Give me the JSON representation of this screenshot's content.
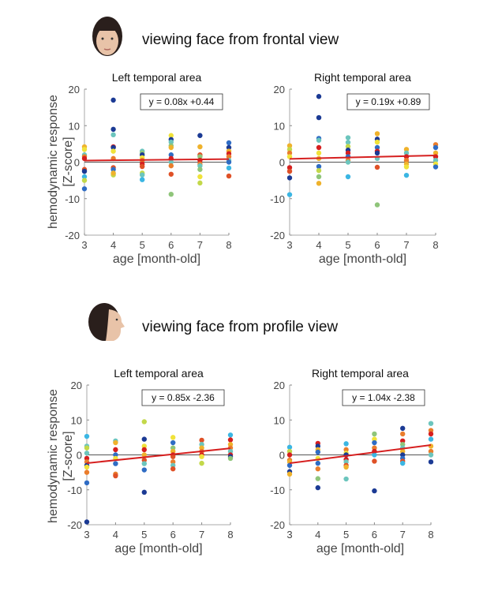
{
  "colors": {
    "navy": "#1b3a94",
    "blue": "#2f6cc4",
    "cyan": "#3bb6e3",
    "teal": "#6cc5bd",
    "green": "#8fc57a",
    "ygreen": "#c3d84a",
    "yellow": "#f0e23a",
    "gold": "#efb22c",
    "orange": "#ea7d2c",
    "redorange": "#df5127",
    "red": "#d61f1f",
    "fit": "#d62020"
  },
  "conditions": [
    {
      "title": "viewing face from frontal view",
      "icon": "face-frontal-photo"
    },
    {
      "title": "viewing face from profile view",
      "icon": "face-profile-photo"
    }
  ],
  "ylabel": [
    "hemodynamic response",
    "[Z-score]"
  ],
  "chart_data": [
    {
      "type": "scatter",
      "title": "Left temporal area",
      "xlabel": "age [month-old]",
      "xlim": [
        3,
        8
      ],
      "ylim": [
        -20,
        20
      ],
      "xticks": [
        "3",
        "4",
        "5",
        "6",
        "7",
        "8"
      ],
      "yticks": [
        "20",
        "10",
        "0",
        "-10",
        "-20"
      ],
      "equation": "y = 0.08x +0.44",
      "fit": {
        "slope": 0.08,
        "intercept": 0.44
      },
      "points": [
        [
          3,
          4.2,
          "gold"
        ],
        [
          3,
          3.5,
          "yellow"
        ],
        [
          3,
          2,
          "teal"
        ],
        [
          3,
          1.5,
          "orange"
        ],
        [
          3,
          1,
          "red"
        ],
        [
          3,
          -2,
          "redorange"
        ],
        [
          3,
          -2.5,
          "navy"
        ],
        [
          3,
          -4,
          "cyan"
        ],
        [
          3,
          -5,
          "ygreen"
        ],
        [
          3,
          -7.3,
          "blue"
        ],
        [
          4,
          17,
          "navy"
        ],
        [
          4,
          9,
          "navy"
        ],
        [
          4,
          7.5,
          "teal"
        ],
        [
          4,
          4.2,
          "red"
        ],
        [
          4,
          4,
          "navy"
        ],
        [
          4,
          3,
          "yellow"
        ],
        [
          4,
          1,
          "orange"
        ],
        [
          4,
          -1.5,
          "redorange"
        ],
        [
          4,
          -2,
          "blue"
        ],
        [
          4,
          -3,
          "teal"
        ],
        [
          4,
          -3.5,
          "ygreen"
        ],
        [
          4,
          -3,
          "gold"
        ],
        [
          5,
          3,
          "teal"
        ],
        [
          5,
          2.5,
          "green"
        ],
        [
          5,
          2,
          "navy"
        ],
        [
          5,
          1.2,
          "yellow"
        ],
        [
          5,
          0.5,
          "orange"
        ],
        [
          5,
          -0.5,
          "red"
        ],
        [
          5,
          -1.2,
          "redorange"
        ],
        [
          5,
          -3,
          "ygreen"
        ],
        [
          5,
          -3.5,
          "teal"
        ],
        [
          5,
          -4.8,
          "cyan"
        ],
        [
          6,
          7.3,
          "yellow"
        ],
        [
          6,
          6.2,
          "navy"
        ],
        [
          6,
          5.5,
          "teal"
        ],
        [
          6,
          4.5,
          "green"
        ],
        [
          6,
          4,
          "gold"
        ],
        [
          6,
          2,
          "blue"
        ],
        [
          6,
          1,
          "red"
        ],
        [
          6,
          0,
          "teal"
        ],
        [
          6,
          -1,
          "orange"
        ],
        [
          6,
          -3.3,
          "redorange"
        ],
        [
          6,
          -8.8,
          "green"
        ],
        [
          7,
          7.3,
          "navy"
        ],
        [
          7,
          4.2,
          "gold"
        ],
        [
          7,
          2,
          "redorange"
        ],
        [
          7,
          1.5,
          "green"
        ],
        [
          7,
          0.5,
          "red"
        ],
        [
          7,
          -0.5,
          "orange"
        ],
        [
          7,
          -1,
          "teal"
        ],
        [
          7,
          -2,
          "green"
        ],
        [
          7,
          -4,
          "yellow"
        ],
        [
          7,
          -5.7,
          "ygreen"
        ],
        [
          8,
          5.3,
          "blue"
        ],
        [
          8,
          4,
          "navy"
        ],
        [
          8,
          3,
          "gold"
        ],
        [
          8,
          2.3,
          "red"
        ],
        [
          8,
          1.5,
          "orange"
        ],
        [
          8,
          0.5,
          "teal"
        ],
        [
          8,
          0,
          "blue"
        ],
        [
          8,
          -1.6,
          "cyan"
        ],
        [
          8,
          -3.8,
          "redorange"
        ]
      ]
    },
    {
      "type": "scatter",
      "title": "Right temporal area",
      "xlabel": "age [month-old]",
      "xlim": [
        3,
        8
      ],
      "ylim": [
        -20,
        20
      ],
      "xticks": [
        "3",
        "4",
        "5",
        "6",
        "7",
        "8"
      ],
      "yticks": [
        "20",
        "10",
        "0",
        "-10",
        "-20"
      ],
      "equation": "y = 0.19x +0.89",
      "fit": {
        "slope": 0.19,
        "intercept": 0.89
      },
      "points": [
        [
          3,
          4.5,
          "gold"
        ],
        [
          3,
          3.5,
          "ygreen"
        ],
        [
          3,
          2.5,
          "orange"
        ],
        [
          3,
          1.5,
          "yellow"
        ],
        [
          3,
          -1.5,
          "red"
        ],
        [
          3,
          -2.5,
          "redorange"
        ],
        [
          3,
          -4.3,
          "navy"
        ],
        [
          3,
          -8.9,
          "cyan"
        ],
        [
          4,
          18,
          "navy"
        ],
        [
          4,
          12.2,
          "navy"
        ],
        [
          4,
          6.5,
          "blue"
        ],
        [
          4,
          6,
          "teal"
        ],
        [
          4,
          4,
          "red"
        ],
        [
          4,
          2.5,
          "yellow"
        ],
        [
          4,
          1,
          "gold"
        ],
        [
          4,
          -1.2,
          "blue"
        ],
        [
          4,
          -2.3,
          "ygreen"
        ],
        [
          4,
          -4,
          "green"
        ],
        [
          4,
          -5.8,
          "gold"
        ],
        [
          5,
          6.7,
          "teal"
        ],
        [
          5,
          5.4,
          "teal"
        ],
        [
          5,
          4.3,
          "ygreen"
        ],
        [
          5,
          3.3,
          "navy"
        ],
        [
          5,
          2.5,
          "red"
        ],
        [
          5,
          1.5,
          "blue"
        ],
        [
          5,
          0.5,
          "orange"
        ],
        [
          5,
          0,
          "teal"
        ],
        [
          5,
          -4,
          "cyan"
        ],
        [
          6,
          7.8,
          "gold"
        ],
        [
          6,
          6.3,
          "navy"
        ],
        [
          6,
          5.5,
          "yellow"
        ],
        [
          6,
          4,
          "blue"
        ],
        [
          6,
          3,
          "red"
        ],
        [
          6,
          2.5,
          "navy"
        ],
        [
          6,
          1,
          "teal"
        ],
        [
          6,
          -1.4,
          "redorange"
        ],
        [
          6,
          -11.7,
          "green"
        ],
        [
          7,
          3.5,
          "gold"
        ],
        [
          7,
          2.5,
          "teal"
        ],
        [
          7,
          1.5,
          "red"
        ],
        [
          7,
          0.5,
          "orange"
        ],
        [
          7,
          -0.5,
          "gold"
        ],
        [
          7,
          -1.3,
          "yellow"
        ],
        [
          7,
          -3.6,
          "cyan"
        ],
        [
          8,
          4.8,
          "orange"
        ],
        [
          8,
          4,
          "blue"
        ],
        [
          8,
          2.5,
          "gold"
        ],
        [
          8,
          1.5,
          "red"
        ],
        [
          8,
          0.5,
          "teal"
        ],
        [
          8,
          -0.5,
          "yellow"
        ],
        [
          8,
          -1.3,
          "blue"
        ]
      ]
    },
    {
      "type": "scatter",
      "title": "Left temporal area",
      "xlabel": "age [month-old]",
      "xlim": [
        3,
        8
      ],
      "ylim": [
        -20,
        20
      ],
      "xticks": [
        "3",
        "4",
        "5",
        "6",
        "7",
        "8"
      ],
      "yticks": [
        "20",
        "10",
        "0",
        "-10",
        "-20"
      ],
      "equation": "y = 0.85x -2.36",
      "fit": {
        "slope": 0.85,
        "intercept": -2.36
      },
      "points": [
        [
          3,
          5.3,
          "cyan"
        ],
        [
          3,
          2.5,
          "teal"
        ],
        [
          3,
          2,
          "ygreen"
        ],
        [
          3,
          0.5,
          "teal"
        ],
        [
          3,
          -1,
          "red"
        ],
        [
          3,
          -2,
          "orange"
        ],
        [
          3,
          -3,
          "navy"
        ],
        [
          3,
          -3.5,
          "yellow"
        ],
        [
          3,
          -5,
          "orange"
        ],
        [
          3,
          -8,
          "blue"
        ],
        [
          3,
          -19.2,
          "navy"
        ],
        [
          4,
          4,
          "teal"
        ],
        [
          4,
          3.5,
          "gold"
        ],
        [
          4,
          1.5,
          "red"
        ],
        [
          4,
          0,
          "blue"
        ],
        [
          4,
          -1,
          "yellow"
        ],
        [
          4,
          -2.5,
          "blue"
        ],
        [
          4,
          -5.5,
          "orange"
        ],
        [
          4,
          -6,
          "redorange"
        ],
        [
          5,
          9.5,
          "ygreen"
        ],
        [
          5,
          4.5,
          "navy"
        ],
        [
          5,
          2.5,
          "yellow"
        ],
        [
          5,
          1.5,
          "red"
        ],
        [
          5,
          0,
          "gold"
        ],
        [
          5,
          -1.5,
          "redorange"
        ],
        [
          5,
          -2.5,
          "teal"
        ],
        [
          5,
          -4.3,
          "blue"
        ],
        [
          5,
          -10.7,
          "navy"
        ],
        [
          6,
          5,
          "yellow"
        ],
        [
          6,
          3.5,
          "blue"
        ],
        [
          6,
          2,
          "green"
        ],
        [
          6,
          1,
          "gold"
        ],
        [
          6,
          0,
          "red"
        ],
        [
          6,
          -0.5,
          "redorange"
        ],
        [
          6,
          -2,
          "orange"
        ],
        [
          6,
          -3,
          "teal"
        ],
        [
          6,
          -4,
          "redorange"
        ],
        [
          7,
          4.2,
          "redorange"
        ],
        [
          7,
          3,
          "teal"
        ],
        [
          7,
          2,
          "gold"
        ],
        [
          7,
          1,
          "orange"
        ],
        [
          7,
          0,
          "red"
        ],
        [
          7,
          -0.5,
          "yellow"
        ],
        [
          7,
          -2.4,
          "ygreen"
        ],
        [
          8,
          5.7,
          "cyan"
        ],
        [
          8,
          4.3,
          "red"
        ],
        [
          8,
          3,
          "gold"
        ],
        [
          8,
          2,
          "orange"
        ],
        [
          8,
          1,
          "teal"
        ],
        [
          8,
          0,
          "red"
        ],
        [
          8,
          -0.5,
          "navy"
        ],
        [
          8,
          -1,
          "green"
        ]
      ]
    },
    {
      "type": "scatter",
      "title": "Right temporal area",
      "xlabel": "age [month-old]",
      "xlim": [
        3,
        8
      ],
      "ylim": [
        -20,
        20
      ],
      "xticks": [
        "3",
        "4",
        "5",
        "6",
        "7",
        "8"
      ],
      "yticks": [
        "20",
        "10",
        "0",
        "-10",
        "-20"
      ],
      "equation": "y = 1.04x -2.38",
      "fit": {
        "slope": 1.04,
        "intercept": -2.38
      },
      "points": [
        [
          3,
          2.2,
          "cyan"
        ],
        [
          3,
          1,
          "ygreen"
        ],
        [
          3,
          0,
          "red"
        ],
        [
          3,
          -1.5,
          "orange"
        ],
        [
          3,
          -2,
          "gold"
        ],
        [
          3,
          -3,
          "blue"
        ],
        [
          3,
          -4.8,
          "navy"
        ],
        [
          3,
          -5.5,
          "gold"
        ],
        [
          4,
          3.3,
          "red"
        ],
        [
          4,
          2.5,
          "navy"
        ],
        [
          4,
          1.5,
          "gold"
        ],
        [
          4,
          0.8,
          "blue"
        ],
        [
          4,
          -1,
          "yellow"
        ],
        [
          4,
          -2.4,
          "blue"
        ],
        [
          4,
          -4,
          "orange"
        ],
        [
          4,
          -6.8,
          "green"
        ],
        [
          4,
          -9.4,
          "navy"
        ],
        [
          5,
          3.2,
          "cyan"
        ],
        [
          5,
          1.5,
          "orange"
        ],
        [
          5,
          0.5,
          "yellow"
        ],
        [
          5,
          0,
          "navy"
        ],
        [
          5,
          -1.3,
          "red"
        ],
        [
          5,
          -2,
          "teal"
        ],
        [
          5,
          -3,
          "redorange"
        ],
        [
          5,
          -3.5,
          "gold"
        ],
        [
          5,
          -6.9,
          "teal"
        ],
        [
          6,
          6,
          "green"
        ],
        [
          6,
          4.5,
          "yellow"
        ],
        [
          6,
          3.5,
          "blue"
        ],
        [
          6,
          2,
          "orange"
        ],
        [
          6,
          1,
          "red"
        ],
        [
          6,
          0,
          "cyan"
        ],
        [
          6,
          -1.8,
          "redorange"
        ],
        [
          6,
          -10.3,
          "navy"
        ],
        [
          7,
          7.6,
          "navy"
        ],
        [
          7,
          6,
          "orange"
        ],
        [
          7,
          4,
          "red"
        ],
        [
          7,
          3,
          "green"
        ],
        [
          7,
          2,
          "teal"
        ],
        [
          7,
          1,
          "gold"
        ],
        [
          7,
          0,
          "navy"
        ],
        [
          7,
          -1,
          "blue"
        ],
        [
          7,
          -1.8,
          "redorange"
        ],
        [
          7,
          -2.4,
          "cyan"
        ],
        [
          8,
          9,
          "teal"
        ],
        [
          8,
          7,
          "orange"
        ],
        [
          8,
          6,
          "red"
        ],
        [
          8,
          4.5,
          "cyan"
        ],
        [
          8,
          2.5,
          "gold"
        ],
        [
          8,
          1,
          "orange"
        ],
        [
          8,
          0,
          "teal"
        ],
        [
          8,
          -2,
          "navy"
        ]
      ]
    }
  ]
}
